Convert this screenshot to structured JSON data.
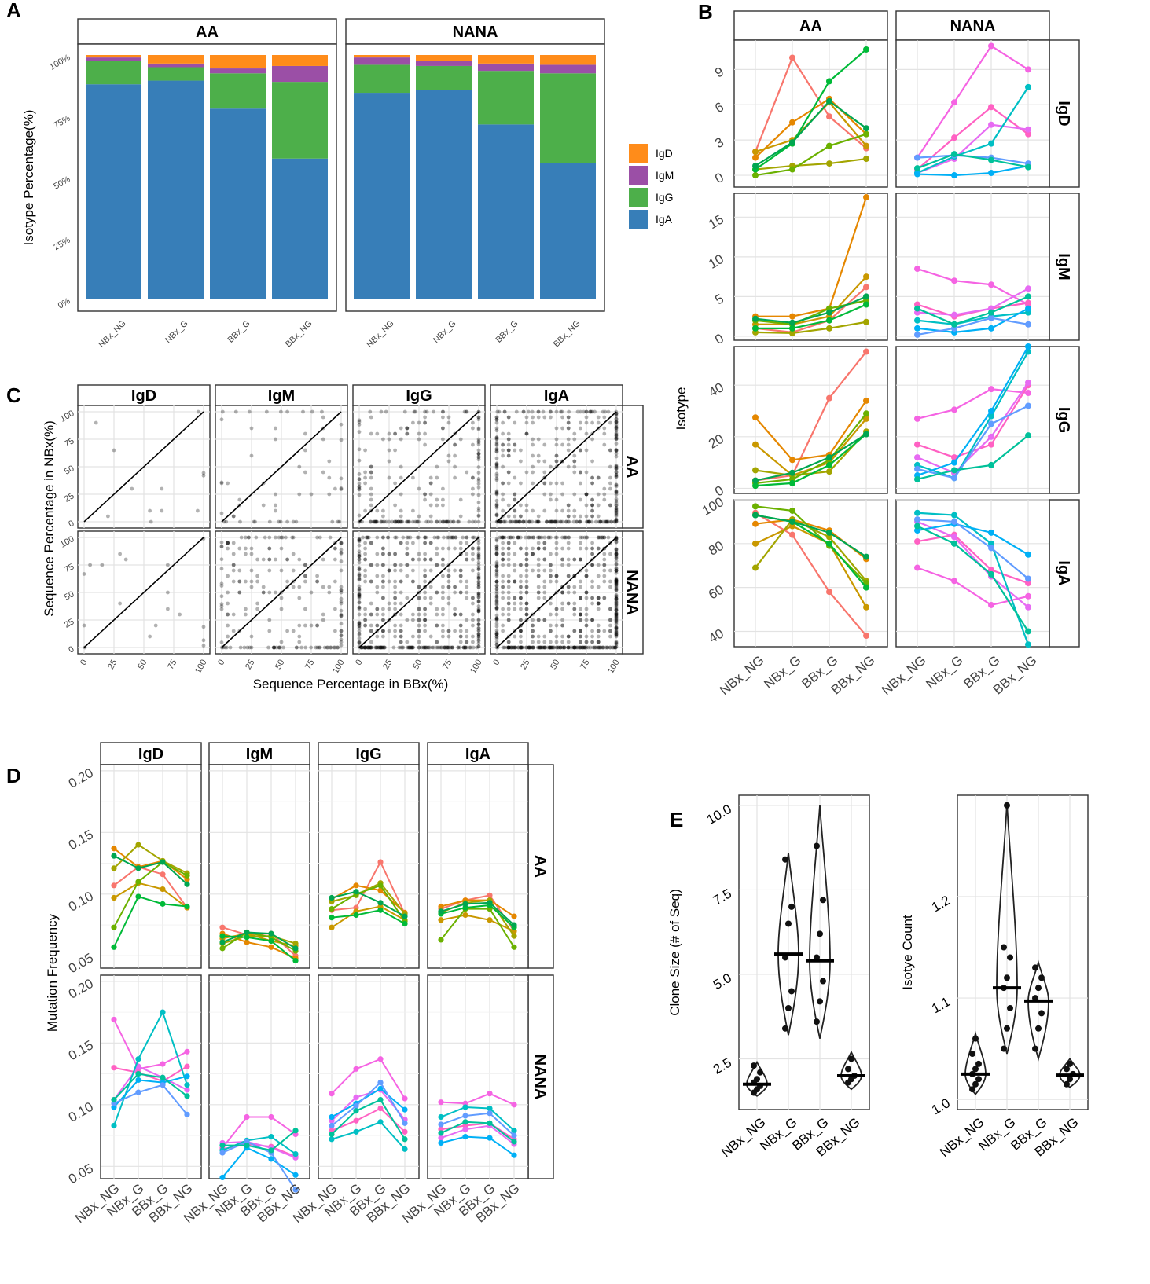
{
  "panel_labels": [
    "A",
    "B",
    "C",
    "D",
    "E"
  ],
  "colors": {
    "IgD": "#ff8c1a",
    "IgM": "#9b4fa6",
    "IgG": "#4daf4a",
    "IgA": "#377eb8",
    "aa_lines": [
      "#f8766d",
      "#e58700",
      "#c99800",
      "#a3a500",
      "#6bb100",
      "#00ba38",
      "#00a651",
      "#de8c00"
    ],
    "nana_lines": [
      "#f564e3",
      "#ff61c3",
      "#e76bf3",
      "#00bfc4",
      "#00b0f6",
      "#619cff",
      "#00c19a",
      "#ff6c91"
    ]
  },
  "chart_data": [
    {
      "id": "A",
      "type": "bar",
      "stacked": true,
      "facets": [
        "AA",
        "NANA"
      ],
      "categories": [
        "NBx_NG",
        "NBx_G",
        "BBx_G",
        "BBx_NG"
      ],
      "ylabel": "Isotype Percentage(%)",
      "yticks": [
        "0%",
        "25%",
        "50%",
        "75%",
        "100%"
      ],
      "legend": [
        "IgD",
        "IgM",
        "IgG",
        "IgA"
      ],
      "series": [
        {
          "facet": "AA",
          "name": "IgA",
          "values": [
            88,
            89.5,
            78,
            57.5
          ]
        },
        {
          "facet": "AA",
          "name": "IgG",
          "values": [
            9.5,
            5.5,
            14.5,
            31.5
          ]
        },
        {
          "facet": "AA",
          "name": "IgM",
          "values": [
            1.5,
            1.5,
            2,
            6.5
          ]
        },
        {
          "facet": "AA",
          "name": "IgD",
          "values": [
            1,
            3.5,
            5.5,
            4.5
          ]
        },
        {
          "facet": "NANA",
          "name": "IgA",
          "values": [
            84.5,
            85.5,
            71.5,
            55.5
          ]
        },
        {
          "facet": "NANA",
          "name": "IgG",
          "values": [
            11.5,
            10,
            22,
            37
          ]
        },
        {
          "facet": "NANA",
          "name": "IgM",
          "values": [
            3,
            2,
            3,
            3.5
          ]
        },
        {
          "facet": "NANA",
          "name": "IgD",
          "values": [
            1,
            2.5,
            3.5,
            4
          ]
        }
      ]
    },
    {
      "id": "B",
      "type": "line",
      "col_facets": [
        "AA",
        "NANA"
      ],
      "row_facets": [
        "IgD",
        "IgM",
        "IgG",
        "IgA"
      ],
      "categories": [
        "NBx_NG",
        "NBx_G",
        "BBx_G",
        "BBx_NG"
      ],
      "ylabel": "Isotype",
      "rows": [
        {
          "name": "IgD",
          "ylim": [
            -1,
            11.5
          ],
          "yticks": [
            "0",
            "3",
            "6",
            "9"
          ],
          "AA": [
            [
              2,
              10,
              5,
              2.3
            ],
            [
              1.5,
              4.5,
              6.5,
              3.5
            ],
            [
              2,
              3,
              6.2,
              2.5
            ],
            [
              0.5,
              0.8,
              1,
              1.4
            ],
            [
              0,
              0.5,
              2.5,
              3.5
            ],
            [
              0.5,
              2.7,
              8,
              10.7
            ],
            [
              0.8,
              2.8,
              6.3,
              4
            ]
          ],
          "NANA": [
            [
              1.5,
              6.2,
              11,
              9
            ],
            [
              0.5,
              3.2,
              5.8,
              3.5
            ],
            [
              0.2,
              1.4,
              4.3,
              3.9
            ],
            [
              0.2,
              1.6,
              2.7,
              7.5
            ],
            [
              0.1,
              0,
              0.2,
              0.8
            ],
            [
              1.5,
              1.7,
              1.5,
              1
            ],
            [
              0.6,
              1.8,
              1.3,
              0.7
            ]
          ]
        },
        {
          "name": "IgM",
          "ylim": [
            -0.5,
            18
          ],
          "yticks": [
            "0",
            "5",
            "10",
            "15"
          ],
          "AA": [
            [
              1,
              0.5,
              2,
              6.2
            ],
            [
              2.5,
              2.5,
              3.5,
              17.5
            ],
            [
              1.5,
              1.5,
              2.5,
              7.5
            ],
            [
              0.5,
              0.4,
              1,
              1.8
            ],
            [
              2,
              1.5,
              3.5,
              4.5
            ],
            [
              1,
              1,
              2,
              4
            ],
            [
              2.2,
              1.7,
              3,
              5
            ]
          ],
          "NANA": [
            [
              8.5,
              7,
              6.5,
              4
            ],
            [
              4,
              2.5,
              3.5,
              4.2
            ],
            [
              3,
              2.7,
              3.5,
              6
            ],
            [
              2,
              1.5,
              2.5,
              3
            ],
            [
              1,
              0.5,
              1,
              3.5
            ],
            [
              0.2,
              1,
              2.3,
              1.5
            ],
            [
              3.5,
              1.5,
              3,
              5
            ]
          ]
        },
        {
          "name": "IgG",
          "ylim": [
            -2,
            55
          ],
          "yticks": [
            "0",
            "20",
            "40"
          ],
          "AA": [
            [
              3,
              5,
              35,
              53
            ],
            [
              27.5,
              11,
              13,
              34
            ],
            [
              17,
              5,
              10,
              27
            ],
            [
              7,
              5,
              6.5,
              22
            ],
            [
              2,
              3.5,
              11,
              29
            ],
            [
              1,
              2,
              9,
              21
            ],
            [
              3,
              6,
              12,
              21
            ]
          ],
          "NANA": [
            [
              27,
              30.5,
              38.5,
              37
            ],
            [
              17,
              12,
              17,
              40
            ],
            [
              12,
              6,
              20,
              41
            ],
            [
              9,
              4,
              28,
              53
            ],
            [
              5,
              10,
              30,
              55
            ],
            [
              7.5,
              4,
              25,
              32
            ],
            [
              3.5,
              7,
              9,
              20.5
            ]
          ]
        },
        {
          "name": "IgA",
          "ylim": [
            33,
            100
          ],
          "yticks": [
            "40",
            "60",
            "80",
            "100"
          ],
          "AA": [
            [
              94,
              84,
              58,
              38
            ],
            [
              89,
              91,
              86,
              73
            ],
            [
              80,
              88,
              80,
              51
            ],
            [
              69,
              91,
              83,
              63
            ],
            [
              97,
              95,
              79,
              62
            ],
            [
              93,
              90,
              80,
              60
            ],
            [
              93,
              90,
              85,
              74
            ]
          ],
          "NANA": [
            [
              69,
              63,
              52,
              56
            ],
            [
              81,
              84,
              68,
              62
            ],
            [
              90,
              83,
              65,
              51
            ],
            [
              94,
              93,
              80,
              34
            ],
            [
              86,
              89,
              85,
              75
            ],
            [
              91,
              90,
              78,
              64
            ],
            [
              88,
              80,
              66,
              40
            ]
          ]
        }
      ]
    },
    {
      "id": "C",
      "type": "scatter",
      "col_facets": [
        "IgD",
        "IgM",
        "IgG",
        "IgA"
      ],
      "row_facets": [
        "AA",
        "NANA"
      ],
      "xlabel": "Sequence Percentage in BBx(%)",
      "ylabel": "Sequence Percentage in NBx(%)",
      "xticks": [
        "0",
        "25",
        "50",
        "75",
        "100"
      ],
      "yticks": [
        "0",
        "25",
        "50",
        "75",
        "100"
      ],
      "xlim": [
        0,
        100
      ],
      "ylim": [
        0,
        100
      ],
      "diagonal": "identity line",
      "point_density": [
        [
          12,
          60,
          220,
          420
        ],
        [
          18,
          200,
          520,
          680
        ]
      ]
    },
    {
      "id": "D",
      "type": "line",
      "col_facets": [
        "IgD",
        "IgM",
        "IgG",
        "IgA"
      ],
      "row_facets": [
        "AA",
        "NANA"
      ],
      "categories": [
        "NBx_NG",
        "NBx_G",
        "BBx_G",
        "BBx_NG"
      ],
      "ylabel": "Mutation Frequency",
      "ylim": [
        0.04,
        0.205
      ],
      "yticks": [
        "0.05",
        "0.10",
        "0.15",
        "0.20"
      ],
      "data": {
        "AA": {
          "IgD": [
            [
              0.107,
              0.122,
              0.116,
              0.089
            ],
            [
              0.137,
              0.122,
              0.127,
              0.112
            ],
            [
              0.097,
              0.109,
              0.104,
              0.089
            ],
            [
              0.121,
              0.14,
              0.127,
              0.117
            ],
            [
              0.073,
              0.11,
              0.126,
              0.115
            ],
            [
              0.057,
              0.098,
              0.092,
              0.09
            ],
            [
              0.131,
              0.121,
              0.126,
              0.108
            ]
          ],
          "IgM": [
            [
              0.073,
              0.067,
              0.068,
              0.05
            ],
            [
              0.068,
              0.061,
              0.057,
              0.048
            ],
            [
              0.064,
              0.068,
              0.062,
              0.058
            ],
            [
              0.06,
              0.066,
              0.066,
              0.06
            ],
            [
              0.056,
              0.069,
              0.065,
              0.054
            ],
            [
              0.066,
              0.065,
              0.062,
              0.046
            ],
            [
              0.061,
              0.069,
              0.068,
              0.056
            ]
          ],
          "IgG": [
            [
              0.087,
              0.089,
              0.126,
              0.084
            ],
            [
              0.096,
              0.107,
              0.103,
              0.085
            ],
            [
              0.073,
              0.086,
              0.09,
              0.079
            ],
            [
              0.094,
              0.099,
              0.109,
              0.084
            ],
            [
              0.088,
              0.1,
              0.107,
              0.078
            ],
            [
              0.081,
              0.083,
              0.087,
              0.076
            ],
            [
              0.097,
              0.102,
              0.093,
              0.082
            ]
          ],
          "IgA": [
            [
              0.088,
              0.095,
              0.099,
              0.07
            ],
            [
              0.09,
              0.095,
              0.095,
              0.082
            ],
            [
              0.079,
              0.083,
              0.079,
              0.07
            ],
            [
              0.085,
              0.093,
              0.095,
              0.066
            ],
            [
              0.063,
              0.088,
              0.088,
              0.057
            ],
            [
              0.084,
              0.089,
              0.091,
              0.073
            ],
            [
              0.086,
              0.092,
              0.093,
              0.075
            ]
          ]
        },
        "NANA": {
          "IgD": [
            [
              0.169,
              0.129,
              0.133,
              0.143
            ],
            [
              0.13,
              0.126,
              0.119,
              0.131
            ],
            [
              0.104,
              0.131,
              0.122,
              0.112
            ],
            [
              0.083,
              0.137,
              0.175,
              0.116
            ],
            [
              0.098,
              0.12,
              0.118,
              0.123
            ],
            [
              0.101,
              0.11,
              0.116,
              0.092
            ],
            [
              0.104,
              0.125,
              0.122,
              0.107
            ]
          ],
          "IgM": [
            [
              0.065,
              0.09,
              0.09,
              0.076
            ],
            [
              0.064,
              0.068,
              0.066,
              0.058
            ],
            [
              0.069,
              0.07,
              0.065,
              0.057
            ],
            [
              0.063,
              0.071,
              0.074,
              0.06
            ],
            [
              0.041,
              0.065,
              0.056,
              0.043
            ],
            [
              0.061,
              0.07,
              0.061,
              0.031
            ],
            [
              0.067,
              0.067,
              0.063,
              0.079
            ]
          ],
          "IgG": [
            [
              0.109,
              0.129,
              0.137,
              0.105
            ],
            [
              0.079,
              0.087,
              0.097,
              0.078
            ],
            [
              0.087,
              0.106,
              0.112,
              0.088
            ],
            [
              0.072,
              0.078,
              0.086,
              0.064
            ],
            [
              0.09,
              0.101,
              0.113,
              0.096
            ],
            [
              0.083,
              0.099,
              0.118,
              0.085
            ],
            [
              0.076,
              0.095,
              0.104,
              0.072
            ]
          ],
          "IgA": [
            [
              0.102,
              0.101,
              0.109,
              0.1
            ],
            [
              0.08,
              0.083,
              0.085,
              0.072
            ],
            [
              0.073,
              0.08,
              0.083,
              0.068
            ],
            [
              0.09,
              0.098,
              0.097,
              0.079
            ],
            [
              0.069,
              0.074,
              0.073,
              0.059
            ],
            [
              0.084,
              0.091,
              0.093,
              0.075
            ],
            [
              0.077,
              0.086,
              0.085,
              0.07
            ]
          ]
        }
      }
    },
    {
      "id": "E1",
      "type": "violin",
      "categories": [
        "NBx_NG",
        "NBx_G",
        "BBx_G",
        "BBx_NG"
      ],
      "ylabel": "Clone Size (# of Seq)",
      "ylim": [
        1.0,
        10.3
      ],
      "yticks": [
        "2.5",
        "5.0",
        "7.5",
        "10.0"
      ],
      "medians": [
        1.75,
        5.6,
        5.4,
        2.0
      ],
      "ranges": [
        [
          1.4,
          2.4
        ],
        [
          3.2,
          8.6
        ],
        [
          3.1,
          10.0
        ],
        [
          1.6,
          2.7
        ]
      ],
      "points": [
        [
          1.5,
          1.6,
          1.7,
          1.8,
          1.9,
          2.1,
          2.3
        ],
        [
          3.4,
          4.0,
          4.5,
          5.5,
          6.5,
          7.0,
          8.4
        ],
        [
          3.6,
          4.2,
          4.8,
          5.5,
          6.2,
          7.2,
          8.8
        ],
        [
          1.8,
          1.9,
          2.0,
          2.2,
          2.5
        ]
      ]
    },
    {
      "id": "E2",
      "type": "violin",
      "categories": [
        "NBx_NG",
        "NBx_G",
        "BBx_G",
        "BBx_NG"
      ],
      "ylabel": "Isotye  Count",
      "ylim": [
        0.99,
        1.3
      ],
      "yticks": [
        "1.0",
        "1.1",
        "1.2"
      ],
      "medians": [
        1.025,
        1.11,
        1.097,
        1.024
      ],
      "ranges": [
        [
          1.005,
          1.065
        ],
        [
          1.045,
          1.292
        ],
        [
          1.04,
          1.135
        ],
        [
          1.012,
          1.04
        ]
      ],
      "points": [
        [
          1.01,
          1.015,
          1.02,
          1.025,
          1.03,
          1.035,
          1.045,
          1.06
        ],
        [
          1.05,
          1.07,
          1.09,
          1.11,
          1.12,
          1.14,
          1.15,
          1.29
        ],
        [
          1.05,
          1.07,
          1.085,
          1.1,
          1.11,
          1.12,
          1.13
        ],
        [
          1.015,
          1.02,
          1.025,
          1.03,
          1.035
        ]
      ]
    }
  ]
}
